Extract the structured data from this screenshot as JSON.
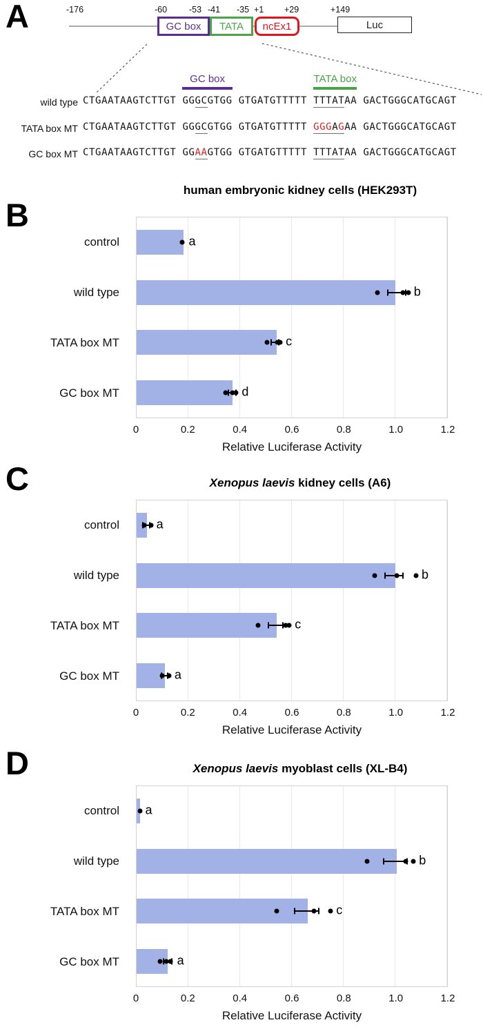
{
  "colors": {
    "bar_fill": "#a3b2e6",
    "purple": "#5b2d91",
    "green": "#4aa546",
    "red": "#e3131d",
    "mutation_red": "#e01f1f",
    "grid": "#e9e9ed"
  },
  "panel_a": {
    "letter": "A",
    "construct": {
      "coords": [
        {
          "label": "-176",
          "x": 96
        },
        {
          "label": "-60",
          "x": 224
        },
        {
          "label": "-53",
          "x": 274
        },
        {
          "label": "-41",
          "x": 301
        },
        {
          "label": "-35",
          "x": 343
        },
        {
          "label": "+1",
          "x": 368
        },
        {
          "label": "+29",
          "x": 412
        },
        {
          "label": "+149",
          "x": 479
        }
      ],
      "boxes": [
        {
          "label": "GC box",
          "x": 228,
          "w": 70,
          "color": "#5b2d91",
          "border": 3,
          "rounded": false
        },
        {
          "label": "TATA",
          "x": 304,
          "w": 57,
          "color": "#4aa546",
          "border": 3,
          "rounded": false
        },
        {
          "label": "ncEx1",
          "x": 369,
          "w": 59,
          "color": "#e3131d",
          "border": 3,
          "rounded": true
        },
        {
          "label": "Luc",
          "x": 489,
          "w": 106,
          "color": "#222222",
          "border": 1.5,
          "rounded": false
        }
      ]
    },
    "annotations": [
      {
        "label": "GC box",
        "color": "#5b2d91",
        "segment": 1
      },
      {
        "label": "TATA box",
        "color": "#4aa546",
        "segment": 3
      }
    ],
    "sequences": [
      {
        "name": "wild type",
        "segments": [
          [
            {
              "t": "CTGAATAAGTCTTGT"
            }
          ],
          [
            {
              "t": "GG"
            },
            {
              "t": "GC",
              "u": true
            },
            {
              "t": "GTGG"
            }
          ],
          [
            {
              "t": "GTGATGTTTTT"
            }
          ],
          [
            {
              "t": "TTTA",
              "u": true
            },
            {
              "t": "T",
              "u": true
            },
            {
              "t": "AA"
            }
          ],
          [
            {
              "t": "GACTGGGCATGCAGT"
            }
          ]
        ]
      },
      {
        "name": "TATA box MT",
        "segments": [
          [
            {
              "t": "CTGAATAAGTCTTGT"
            }
          ],
          [
            {
              "t": "GG"
            },
            {
              "t": "GC",
              "u": true
            },
            {
              "t": "GTGG"
            }
          ],
          [
            {
              "t": "GTGATGTTTTT"
            }
          ],
          [
            {
              "t": "GGG",
              "u": true,
              "r": true
            },
            {
              "t": "A",
              "u": true
            },
            {
              "t": "G",
              "u": true,
              "r": true
            },
            {
              "t": "AA"
            }
          ],
          [
            {
              "t": "GACTGGGCATGCAGT"
            }
          ]
        ]
      },
      {
        "name": "GC box MT",
        "segments": [
          [
            {
              "t": "CTGAATAAGTCTTGT"
            }
          ],
          [
            {
              "t": "GG"
            },
            {
              "t": "AA",
              "u": true,
              "r": true
            },
            {
              "t": "GTGG"
            }
          ],
          [
            {
              "t": "GTGATGTTTTT"
            }
          ],
          [
            {
              "t": "TTTA",
              "u": true
            },
            {
              "t": "T",
              "u": true
            },
            {
              "t": "AA"
            }
          ],
          [
            {
              "t": "GACTGGGCATGCAGT"
            }
          ]
        ]
      }
    ]
  },
  "axis": {
    "xlabel": "Relative Luciferase Activity",
    "xmax": 1.2,
    "tick_labels": [
      "0",
      "0.2",
      "0.4",
      "0.6",
      "0.8",
      "1.0",
      "1.2"
    ]
  },
  "chart_data": [
    {
      "type": "bar",
      "panel": "B",
      "title_parts": [
        {
          "t": "human embryonic kidney cells (HEK293T)"
        }
      ],
      "categories": [
        "control",
        "wild type",
        "TATA box MT",
        "GC box MT"
      ],
      "values": [
        0.18,
        1.0,
        0.54,
        0.37
      ],
      "points": [
        [
          0.175
        ],
        [
          0.93,
          1.03,
          1.05
        ],
        [
          0.505,
          0.545,
          0.555
        ],
        [
          0.345,
          0.37,
          0.385
        ]
      ],
      "whiskers": [
        null,
        [
          0.97,
          1.04
        ],
        [
          0.52,
          0.55
        ],
        [
          0.355,
          0.385
        ]
      ],
      "sig_letters": [
        "a",
        "b",
        "c",
        "d"
      ],
      "xlabel": "Relative Luciferase Activity",
      "xlim": [
        0,
        1.2
      ],
      "ticks": [
        0,
        0.2,
        0.4,
        0.6,
        0.8,
        1.0,
        1.2
      ]
    },
    {
      "type": "bar",
      "panel": "C",
      "title_parts": [
        {
          "t": "Xenopus laevis",
          "i": true
        },
        {
          "t": " kidney cells (A6)"
        }
      ],
      "categories": [
        "control",
        "wild type",
        "TATA box MT",
        "GC box MT"
      ],
      "values": [
        0.04,
        1.0,
        0.54,
        0.11
      ],
      "points": [
        [
          0.03,
          0.055
        ],
        [
          0.92,
          1.005,
          1.08
        ],
        [
          0.47,
          0.575,
          0.59
        ],
        [
          0.1,
          0.125
        ]
      ],
      "whiskers": [
        [
          0.025,
          0.05
        ],
        [
          0.96,
          1.03
        ],
        [
          0.51,
          0.565
        ],
        [
          0.095,
          0.12
        ]
      ],
      "sig_letters": [
        "a",
        "b",
        "c",
        "a"
      ],
      "xlabel": "Relative Luciferase Activity",
      "xlim": [
        0,
        1.2
      ],
      "ticks": [
        0,
        0.2,
        0.4,
        0.6,
        0.8,
        1.0,
        1.2
      ]
    },
    {
      "type": "bar",
      "panel": "D",
      "title_parts": [
        {
          "t": "Xenopus laevis",
          "i": true
        },
        {
          "t": " myoblast cells (XL-B4)"
        }
      ],
      "categories": [
        "control",
        "wild type",
        "TATA box MT",
        "GC box MT"
      ],
      "values": [
        0.012,
        1.005,
        0.66,
        0.12
      ],
      "points": [
        [
          0.012
        ],
        [
          0.89,
          1.04,
          1.07
        ],
        [
          0.54,
          0.685,
          0.75
        ],
        [
          0.09,
          0.115,
          0.13
        ]
      ],
      "whiskers": [
        null,
        [
          0.955,
          1.045
        ],
        [
          0.61,
          0.705
        ],
        [
          0.105,
          0.135
        ]
      ],
      "sig_letters": [
        "a",
        "b",
        "c",
        "a"
      ],
      "xlabel": "Relative Luciferase Activity",
      "xlim": [
        0,
        1.2
      ],
      "ticks": [
        0,
        0.2,
        0.4,
        0.6,
        0.8,
        1.0,
        1.2
      ]
    }
  ]
}
